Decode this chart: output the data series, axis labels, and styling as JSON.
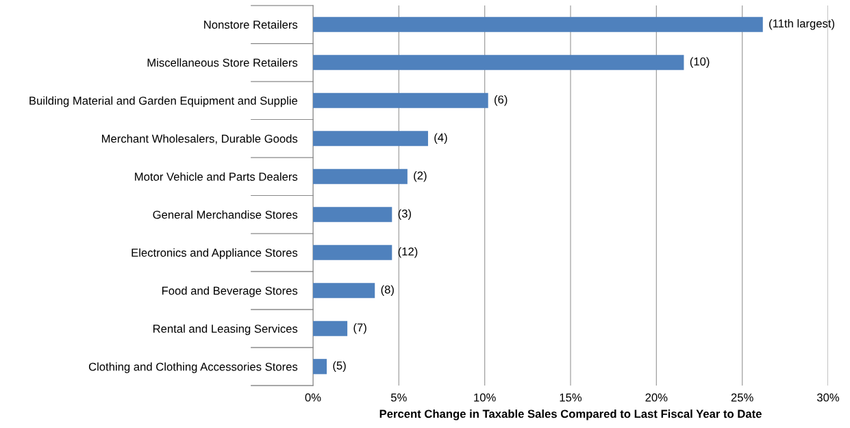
{
  "chart_data": {
    "type": "bar",
    "orientation": "horizontal",
    "xlabel": "Percent Change in Taxable Sales Compared to Last Fiscal Year to Date",
    "categories": [
      "Nonstore Retailers",
      "Miscellaneous Store Retailers",
      "Building Material and Garden Equipment and Supplie",
      "Merchant Wholesalers, Durable Goods",
      "Motor Vehicle and Parts Dealers",
      "General Merchandise Stores",
      "Electronics and Appliance Stores",
      "Food and Beverage Stores",
      "Rental and Leasing Services",
      "Clothing and Clothing Accessories Stores"
    ],
    "values": [
      26.2,
      21.6,
      10.2,
      6.7,
      5.5,
      4.6,
      4.6,
      3.6,
      2.0,
      0.8
    ],
    "annotations": [
      {
        "text": "(11th largest)",
        "x": 26.2,
        "y": "Nonstore Retailers"
      },
      {
        "text": "(10)",
        "x": 21.6,
        "y": "Miscellaneous Store Retailers"
      },
      {
        "text": "(6)",
        "x": 10.2,
        "y": "Building Material and Garden Equipment and Supplie"
      },
      {
        "text": "(4)",
        "x": 6.7,
        "y": "Merchant Wholesalers, Durable Goods"
      },
      {
        "text": "(2)",
        "x": 5.5,
        "y": "Motor Vehicle and Parts Dealers"
      },
      {
        "text": "(3)",
        "x": 4.6,
        "y": "General Merchandise Stores"
      },
      {
        "text": "(12)",
        "x": 4.6,
        "y": "Electronics and Appliance Stores"
      },
      {
        "text": "(8)",
        "x": 3.6,
        "y": "Food and Beverage Stores"
      },
      {
        "text": "(7)",
        "x": 2.0,
        "y": "Rental and Leasing Services"
      },
      {
        "text": "(5)",
        "x": 0.8,
        "y": "Clothing and Clothing Accessories Stores"
      }
    ],
    "color": "#4f81bd",
    "xlim": [
      0,
      30
    ],
    "xticks": [
      {
        "value": 0,
        "label": "0%"
      },
      {
        "value": 5,
        "label": "5%"
      },
      {
        "value": 10,
        "label": "10%"
      },
      {
        "value": 15,
        "label": "15%"
      },
      {
        "value": 20,
        "label": "20%"
      },
      {
        "value": 25,
        "label": "25%"
      },
      {
        "value": 30,
        "label": "30%"
      }
    ],
    "grid": "x",
    "legend": false
  }
}
